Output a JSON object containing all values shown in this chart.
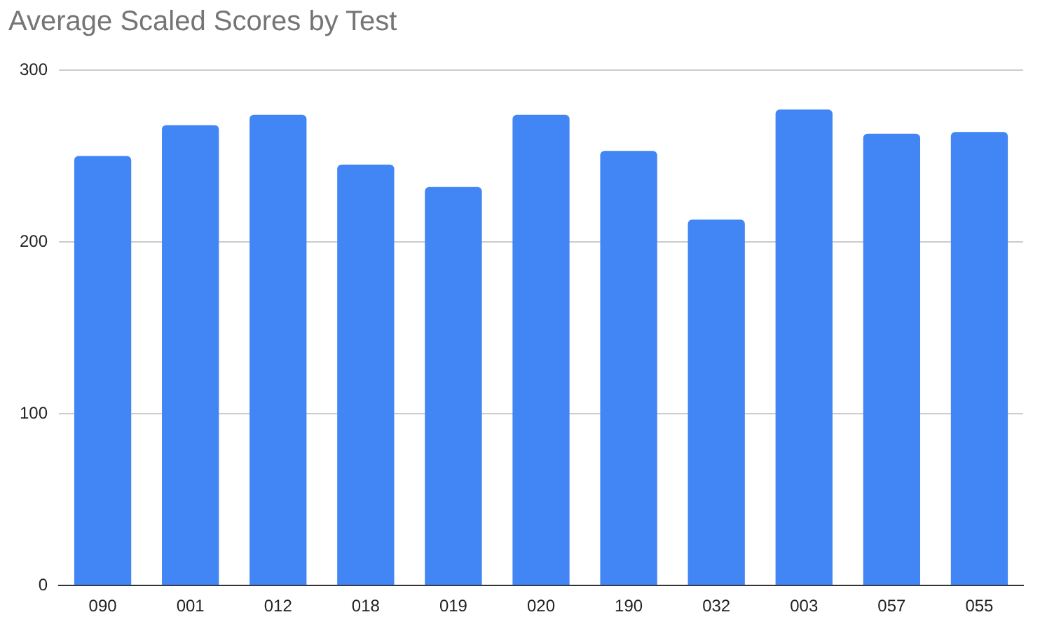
{
  "chart_data": {
    "type": "bar",
    "title": "Average Scaled Scores by Test",
    "categories": [
      "090",
      "001",
      "012",
      "018",
      "019",
      "020",
      "190",
      "032",
      "003",
      "057",
      "055"
    ],
    "values": [
      250,
      268,
      274,
      245,
      232,
      274,
      253,
      213,
      277,
      263,
      264
    ],
    "color": "#4285f4",
    "ylim": [
      0,
      300
    ],
    "yticks": [
      0,
      100,
      200,
      300
    ],
    "grid": "y"
  }
}
